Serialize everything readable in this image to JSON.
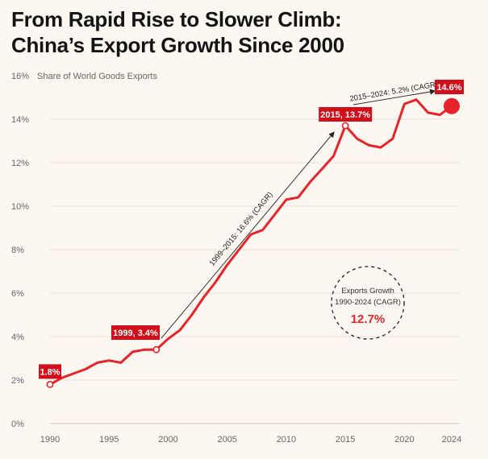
{
  "title_line1": "From Rapid Rise to Slower Climb:",
  "title_line2": "China’s Export Growth Since 2000",
  "colors": {
    "line": "#e8242a",
    "label_bg": "#d10f1b",
    "grid": "#e7dfd8",
    "text": "#666666"
  },
  "chart_data": {
    "type": "line",
    "title": "From Rapid Rise to Slower Climb: China’s Export Growth Since 2000",
    "ylabel": "Share of World Goods Exports",
    "ylim": [
      0,
      16
    ],
    "xlim": [
      1990,
      2024
    ],
    "yticks": [
      "0%",
      "2%",
      "4%",
      "6%",
      "8%",
      "10%",
      "12%",
      "14%",
      "16%"
    ],
    "xticks": [
      "1990",
      "1995",
      "2000",
      "2005",
      "2010",
      "2015",
      "2020",
      "2024"
    ],
    "x": [
      1990,
      1991,
      1992,
      1993,
      1994,
      1995,
      1996,
      1997,
      1998,
      1999,
      2000,
      2001,
      2002,
      2003,
      2004,
      2005,
      2006,
      2007,
      2008,
      2009,
      2010,
      2011,
      2012,
      2013,
      2014,
      2015,
      2016,
      2017,
      2018,
      2019,
      2020,
      2021,
      2022,
      2023,
      2024
    ],
    "values": [
      1.8,
      2.1,
      2.3,
      2.5,
      2.8,
      2.9,
      2.8,
      3.3,
      3.4,
      3.4,
      3.9,
      4.3,
      5.0,
      5.8,
      6.5,
      7.3,
      8.0,
      8.7,
      8.9,
      9.6,
      10.3,
      10.4,
      11.1,
      11.7,
      12.3,
      13.7,
      13.1,
      12.8,
      12.7,
      13.1,
      14.7,
      14.9,
      14.3,
      14.2,
      14.6
    ],
    "labels": {
      "start": "1.8%",
      "y1999": "1999, 3.4%",
      "y2015": "2015, 13.7%",
      "end": "14.6%"
    },
    "annotations": {
      "cagr_1999_2015": "1999–2015: 16.6% (CAGR)",
      "cagr_2015_2024": "2015–2024: 5.2% (CAGR)",
      "circle_line1": "Exports Growth",
      "circle_line2": "1990-2024 (CAGR)",
      "circle_value": "12.7%"
    }
  }
}
